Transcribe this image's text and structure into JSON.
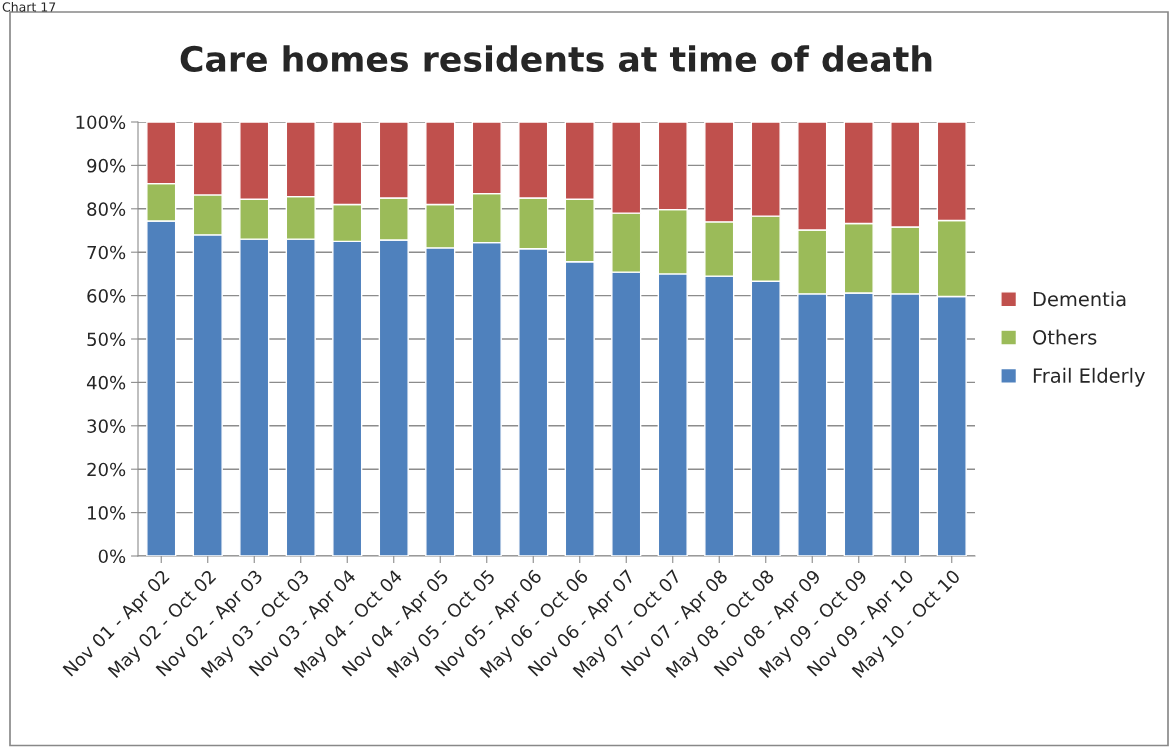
{
  "chart_data": {
    "type": "bar",
    "stacked": true,
    "title": "Care homes residents at time of death",
    "annotations": [
      "Chart 17"
    ],
    "categories": [
      "Nov 01 - Apr 02",
      "May 02 - Oct 02",
      "Nov 02 - Apr 03",
      "May 03 - Oct 03",
      "Nov 03 - Apr 04",
      "May 04 - Oct 04",
      "Nov 04 - Apr 05",
      "May 05 - Oct 05",
      "Nov 05 - Apr 06",
      "May 06 - Oct 06",
      "Nov 06 - Apr 07",
      "May 07 - Oct 07",
      "Nov 07 - Apr 08",
      "May 08 - Oct 08",
      "Nov 08 - Apr 09",
      "May 09 - Oct 09",
      "Nov 09 - Apr 10",
      "May 10 - Oct 10"
    ],
    "series": [
      {
        "name": "Frail Elderly",
        "color": "#4f81bd",
        "values": [
          77.2,
          74,
          73,
          73,
          72.5,
          72.8,
          71,
          72.2,
          70.8,
          67.8,
          65.4,
          65,
          64.5,
          63.3,
          60.4,
          60.6,
          60.4,
          59.8
        ]
      },
      {
        "name": "Others",
        "color": "#9bbb59",
        "values": [
          8.6,
          9.2,
          9.2,
          9.8,
          8.5,
          9.7,
          10,
          11.3,
          11.7,
          14.4,
          13.6,
          14.8,
          12.5,
          15,
          14.7,
          16,
          15.4,
          17.5
        ]
      },
      {
        "name": "Dementia",
        "color": "#c0504d",
        "values": [
          14.2,
          16.8,
          17.8,
          17.2,
          19,
          17.5,
          19,
          16.5,
          17.5,
          17.8,
          21,
          20.2,
          23,
          21.7,
          24.9,
          23.4,
          24.2,
          22.7
        ]
      }
    ],
    "ylim": [
      0,
      100
    ],
    "yticks": [
      {
        "value": 0,
        "label": "0%"
      },
      {
        "value": 10,
        "label": "10%"
      },
      {
        "value": 20,
        "label": "20%"
      },
      {
        "value": 30,
        "label": "30%"
      },
      {
        "value": 40,
        "label": "40%"
      },
      {
        "value": 50,
        "label": "50%"
      },
      {
        "value": 60,
        "label": "60%"
      },
      {
        "value": 70,
        "label": "70%"
      },
      {
        "value": 80,
        "label": "80%"
      },
      {
        "value": 90,
        "label": "90%"
      },
      {
        "value": 100,
        "label": "100%"
      }
    ],
    "grid": "y",
    "legend": "right"
  }
}
